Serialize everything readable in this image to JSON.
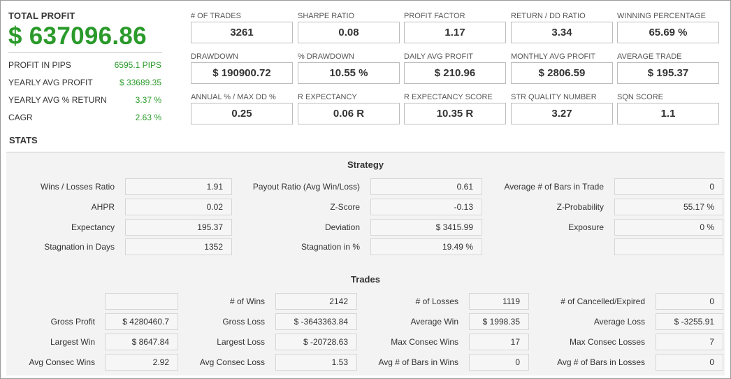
{
  "summary": {
    "total_profit_label": "TOTAL PROFIT",
    "total_profit_value": "$ 637096.86",
    "rows": [
      {
        "label": "PROFIT IN PIPS",
        "value": "6595.1 PIPS"
      },
      {
        "label": "YEARLY AVG PROFIT",
        "value": "$ 33689.35"
      },
      {
        "label": "YEARLY AVG % RETURN",
        "value": "3.37 %"
      },
      {
        "label": "CAGR",
        "value": "2.63 %"
      }
    ]
  },
  "metrics": [
    [
      {
        "label": "# OF TRADES",
        "value": "3261"
      },
      {
        "label": "SHARPE RATIO",
        "value": "0.08"
      },
      {
        "label": "PROFIT FACTOR",
        "value": "1.17"
      },
      {
        "label": "RETURN / DD RATIO",
        "value": "3.34"
      },
      {
        "label": "WINNING PERCENTAGE",
        "value": "65.69 %"
      }
    ],
    [
      {
        "label": "DRAWDOWN",
        "value": "$ 190900.72"
      },
      {
        "label": "% DRAWDOWN",
        "value": "10.55 %"
      },
      {
        "label": "DAILY AVG PROFIT",
        "value": "$ 210.96"
      },
      {
        "label": "MONTHLY AVG PROFIT",
        "value": "$ 2806.59"
      },
      {
        "label": "AVERAGE TRADE",
        "value": "$ 195.37"
      }
    ],
    [
      {
        "label": "ANNUAL % / MAX DD %",
        "value": "0.25"
      },
      {
        "label": "R EXPECTANCY",
        "value": "0.06 R"
      },
      {
        "label": "R EXPECTANCY SCORE",
        "value": "10.35 R"
      },
      {
        "label": "STR QUALITY NUMBER",
        "value": "3.27"
      },
      {
        "label": "SQN SCORE",
        "value": "1.1"
      }
    ]
  ],
  "stats": {
    "title": "STATS",
    "strategy": {
      "title": "Strategy",
      "rows": [
        [
          {
            "label": "Wins / Losses Ratio",
            "value": "1.91"
          },
          {
            "label": "Payout Ratio (Avg Win/Loss)",
            "value": "0.61"
          },
          {
            "label": "Average # of Bars in Trade",
            "value": "0"
          }
        ],
        [
          {
            "label": "AHPR",
            "value": "0.02"
          },
          {
            "label": "Z-Score",
            "value": "-0.13"
          },
          {
            "label": "Z-Probability",
            "value": "55.17 %"
          }
        ],
        [
          {
            "label": "Expectancy",
            "value": "195.37"
          },
          {
            "label": "Deviation",
            "value": "$ 3415.99"
          },
          {
            "label": "Exposure",
            "value": "0 %"
          }
        ],
        [
          {
            "label": "Stagnation in Days",
            "value": "1352"
          },
          {
            "label": "Stagnation in %",
            "value": "19.49 %"
          },
          {
            "label": "",
            "value": ""
          }
        ]
      ]
    },
    "trades": {
      "title": "Trades",
      "rows": [
        [
          {
            "label": "",
            "value": ""
          },
          {
            "label": "# of Wins",
            "value": "2142"
          },
          {
            "label": "# of Losses",
            "value": "1119"
          },
          {
            "label": "# of Cancelled/Expired",
            "value": "0"
          }
        ],
        [
          {
            "label": "Gross Profit",
            "value": "$ 4280460.7"
          },
          {
            "label": "Gross Loss",
            "value": "$ -3643363.84"
          },
          {
            "label": "Average Win",
            "value": "$ 1998.35"
          },
          {
            "label": "Average Loss",
            "value": "$ -3255.91"
          }
        ],
        [
          {
            "label": "Largest Win",
            "value": "$ 8647.84"
          },
          {
            "label": "Largest Loss",
            "value": "$ -20728.63"
          },
          {
            "label": "Max Consec Wins",
            "value": "17"
          },
          {
            "label": "Max Consec Losses",
            "value": "7"
          }
        ],
        [
          {
            "label": "Avg Consec Wins",
            "value": "2.92"
          },
          {
            "label": "Avg Consec Loss",
            "value": "1.53"
          },
          {
            "label": "Avg # of Bars in Wins",
            "value": "0"
          },
          {
            "label": "Avg # of Bars in Losses",
            "value": "0"
          }
        ]
      ]
    }
  }
}
